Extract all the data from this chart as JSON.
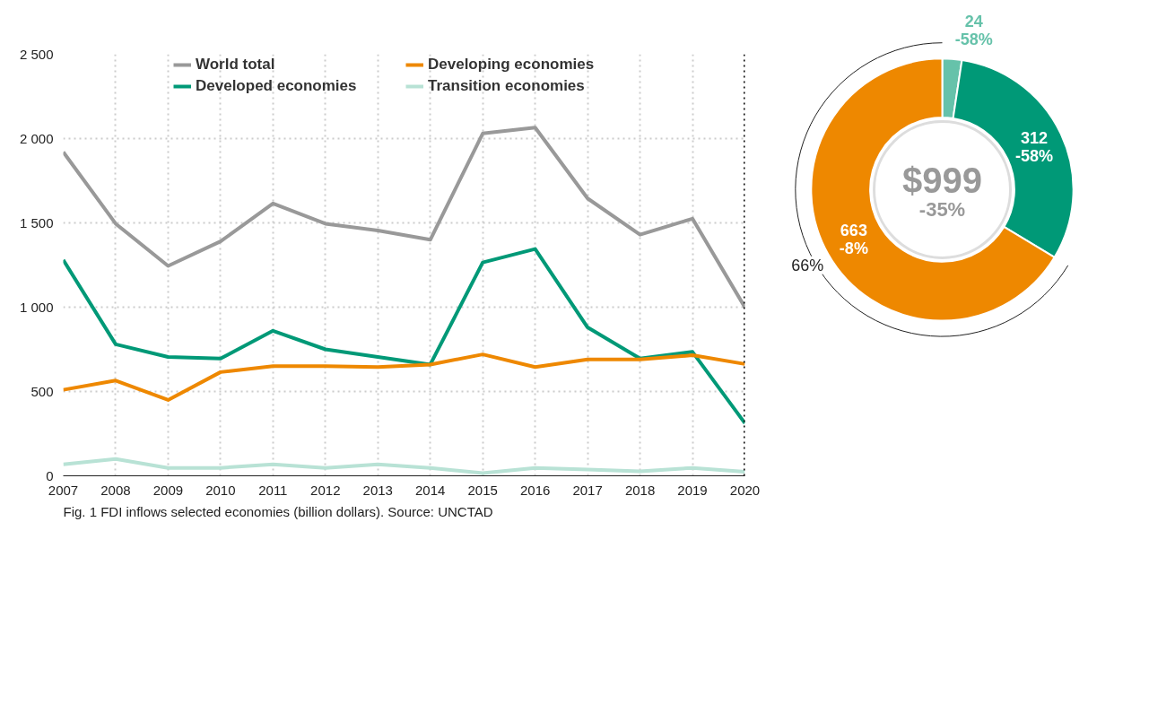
{
  "chart_data": [
    {
      "type": "line",
      "x": [
        2007,
        2008,
        2009,
        2010,
        2011,
        2012,
        2013,
        2014,
        2015,
        2016,
        2017,
        2018,
        2019,
        2020
      ],
      "series": [
        {
          "name": "World total",
          "color": "#999999",
          "values": [
            1920,
            1495,
            1245,
            1390,
            1615,
            1495,
            1455,
            1400,
            2030,
            2065,
            1645,
            1430,
            1525,
            999
          ]
        },
        {
          "name": "Developed economies",
          "color": "#009977",
          "values": [
            1280,
            780,
            705,
            695,
            860,
            750,
            705,
            660,
            1265,
            1345,
            880,
            695,
            735,
            312
          ]
        },
        {
          "name": "Developing economies",
          "color": "#ee8800",
          "values": [
            510,
            565,
            450,
            615,
            650,
            650,
            645,
            660,
            720,
            645,
            690,
            690,
            715,
            663
          ]
        },
        {
          "name": "Transition economies",
          "color": "#b8e2d5",
          "values": [
            68,
            100,
            47,
            47,
            68,
            47,
            68,
            47,
            16,
            47,
            37,
            26,
            47,
            24
          ]
        }
      ],
      "xlim": [
        2007,
        2020
      ],
      "xticks": [
        2007,
        2008,
        2009,
        2010,
        2011,
        2012,
        2013,
        2014,
        2015,
        2016,
        2017,
        2018,
        2019,
        2020
      ],
      "ylim": [
        0,
        2500
      ],
      "yticks": [
        0,
        500,
        {
          "value": 1000,
          "label": "1 000"
        },
        {
          "value": 1500,
          "label": "1 500"
        },
        {
          "value": 2000,
          "label": "2 000"
        },
        {
          "value": 2500,
          "label": "2 500"
        }
      ],
      "grid": true,
      "legend": "top",
      "marker": "none",
      "line_style": "solid",
      "ref_lines": [
        {
          "axis": "x",
          "value": 2020,
          "label": null,
          "color": "#000000",
          "line_style": "dotted"
        }
      ],
      "annotations": [
        "Fig. 1 FDI inflows selected economies (billion dollars). Source: UNCTAD"
      ]
    },
    {
      "type": "donut",
      "categories": [
        null,
        null,
        null
      ],
      "values": [
        24,
        312,
        663
      ],
      "colors": [
        "#66c2aa",
        "#009977",
        "#ee8800"
      ],
      "value_labels": [
        "24\n-58%",
        "312\n-58%",
        "663\n-8%"
      ],
      "annotations": [
        "$999",
        "-35%",
        "66%"
      ]
    }
  ]
}
